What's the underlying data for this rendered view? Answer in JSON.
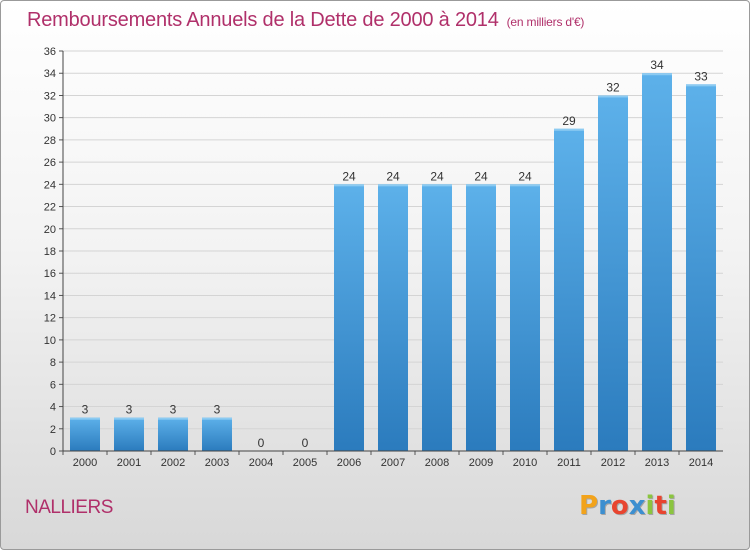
{
  "header": {
    "title": "Remboursements Annuels de la Dette de 2000 à 2014",
    "subtitle": "(en milliers d'€)"
  },
  "footer": {
    "commune": "NALLIERS",
    "logo_text": "Proxiti",
    "logo_colors": [
      "#f2a31b",
      "#3c8fd0",
      "#e8442f",
      "#3c8fd0",
      "#8bc53f",
      "#e8442f",
      "#8bc53f"
    ]
  },
  "colors": {
    "bar_light": "#5db1ea",
    "bar_dark": "#2b7bbd",
    "accent": "#b0306a"
  },
  "chart_data": {
    "type": "bar",
    "categories": [
      "2000",
      "2001",
      "2002",
      "2003",
      "2004",
      "2005",
      "2006",
      "2007",
      "2008",
      "2009",
      "2010",
      "2011",
      "2012",
      "2013",
      "2014"
    ],
    "values": [
      3,
      3,
      3,
      3,
      0,
      0,
      24,
      24,
      24,
      24,
      24,
      29,
      32,
      34,
      33
    ],
    "title": "Remboursements Annuels de la Dette de 2000 à 2014",
    "xlabel": "",
    "ylabel": "",
    "ylim": [
      0,
      36
    ],
    "yticks": [
      0,
      2,
      4,
      6,
      8,
      10,
      12,
      14,
      16,
      18,
      20,
      22,
      24,
      26,
      28,
      30,
      32,
      34,
      36
    ],
    "grid": true
  }
}
